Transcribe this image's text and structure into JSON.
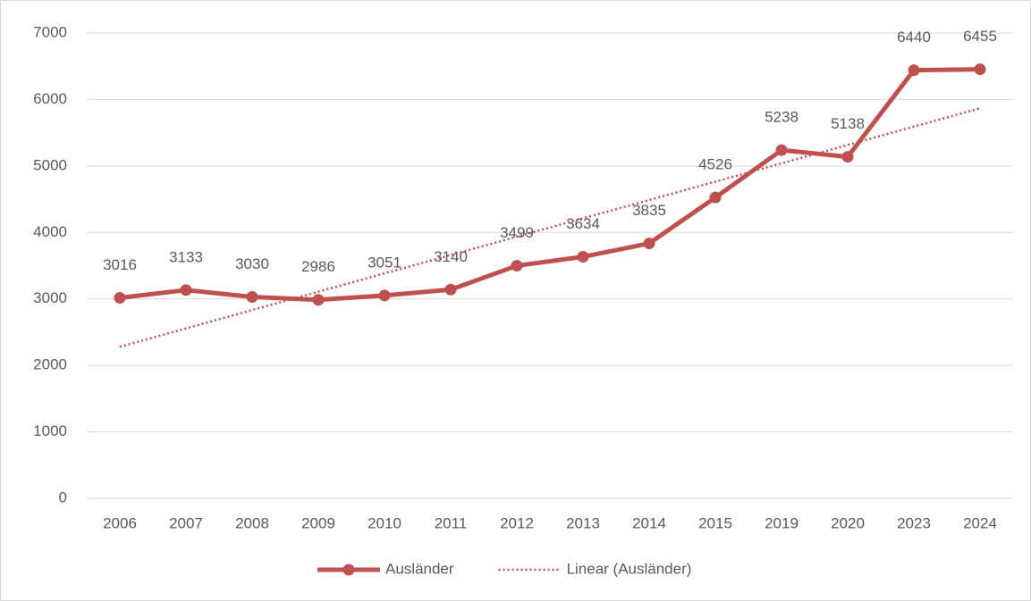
{
  "chart_data": {
    "type": "line",
    "categories": [
      "2006",
      "2007",
      "2008",
      "2009",
      "2010",
      "2011",
      "2012",
      "2013",
      "2014",
      "2015",
      "2019",
      "2020",
      "2023",
      "2024"
    ],
    "series": [
      {
        "name": "Ausländer",
        "color": "#c0504d",
        "values": [
          3016,
          3133,
          3030,
          2986,
          3051,
          3140,
          3499,
          3634,
          3835,
          4526,
          5238,
          5138,
          6440,
          6455
        ],
        "data_labels": true
      },
      {
        "name": "Linear (Ausländer)",
        "color": "#c0504d",
        "dotted": true,
        "values": [
          2280,
          2556,
          2832,
          3108,
          3384,
          3660,
          3936,
          4212,
          4488,
          4764,
          5040,
          5316,
          5592,
          5868
        ]
      }
    ],
    "ylim": [
      0,
      7000
    ],
    "yticks": [
      0,
      1000,
      2000,
      3000,
      4000,
      5000,
      6000,
      7000
    ],
    "grid": true,
    "legend": "bottom"
  }
}
